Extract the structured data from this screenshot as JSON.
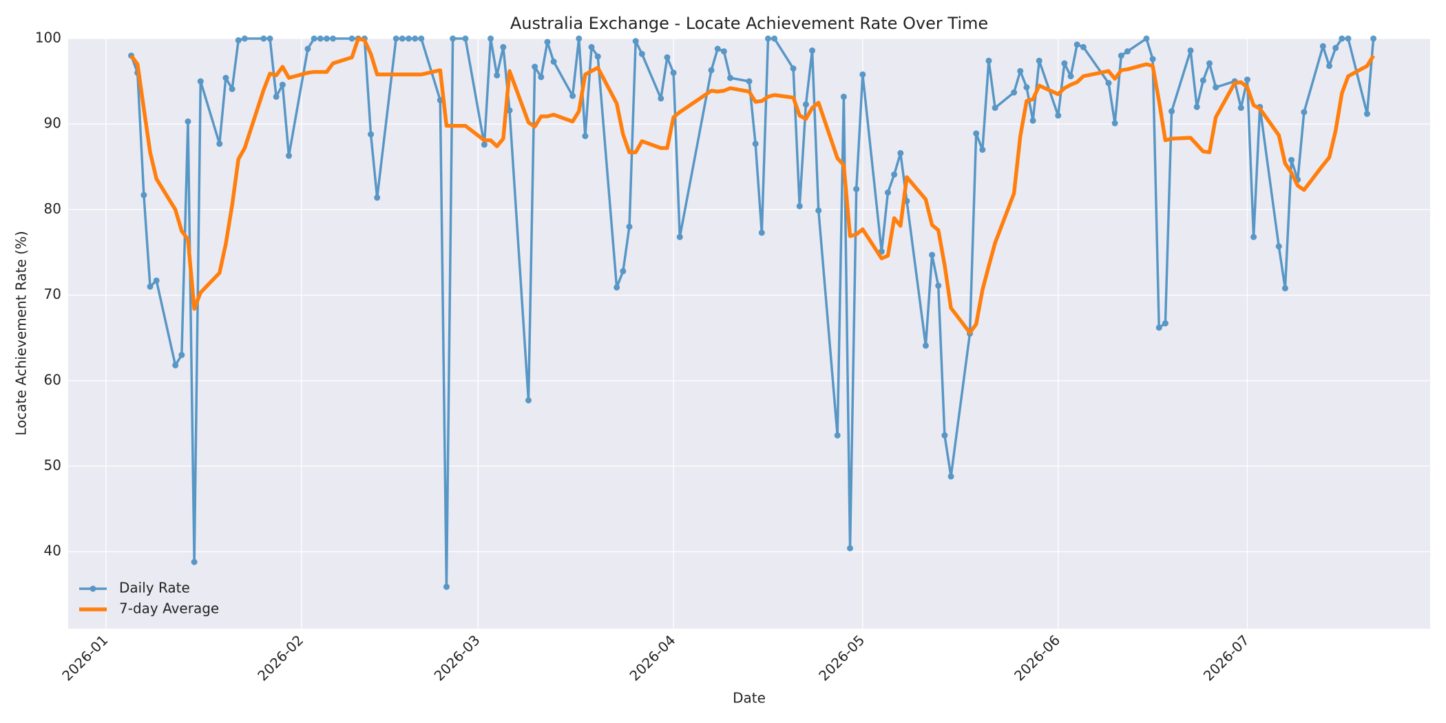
{
  "chart_data": {
    "type": "line",
    "title": "Australia Exchange - Locate Achievement Rate Over Time",
    "xlabel": "Date",
    "ylabel": "Locate Achievement Rate (%)",
    "x": [
      "2026-01-05",
      "2026-01-06",
      "2026-01-07",
      "2026-01-08",
      "2026-01-09",
      "2026-01-12",
      "2026-01-13",
      "2026-01-14",
      "2026-01-15",
      "2026-01-16",
      "2026-01-19",
      "2026-01-20",
      "2026-01-21",
      "2026-01-22",
      "2026-01-23",
      "2026-01-26",
      "2026-01-27",
      "2026-01-28",
      "2026-01-29",
      "2026-01-30",
      "2026-02-02",
      "2026-02-03",
      "2026-02-04",
      "2026-02-05",
      "2026-02-06",
      "2026-02-09",
      "2026-02-10",
      "2026-02-11",
      "2026-02-12",
      "2026-02-13",
      "2026-02-16",
      "2026-02-17",
      "2026-02-18",
      "2026-02-19",
      "2026-02-20",
      "2026-02-23",
      "2026-02-24",
      "2026-02-25",
      "2026-02-27",
      "2026-03-02",
      "2026-03-03",
      "2026-03-04",
      "2026-03-05",
      "2026-03-06",
      "2026-03-09",
      "2026-03-10",
      "2026-03-11",
      "2026-03-12",
      "2026-03-13",
      "2026-03-16",
      "2026-03-17",
      "2026-03-18",
      "2026-03-19",
      "2026-03-20",
      "2026-03-23",
      "2026-03-24",
      "2026-03-25",
      "2026-03-26",
      "2026-03-27",
      "2026-03-30",
      "2026-03-31",
      "2026-04-01",
      "2026-04-02",
      "2026-04-07",
      "2026-04-08",
      "2026-04-09",
      "2026-04-10",
      "2026-04-13",
      "2026-04-14",
      "2026-04-15",
      "2026-04-16",
      "2026-04-17",
      "2026-04-20",
      "2026-04-21",
      "2026-04-22",
      "2026-04-23",
      "2026-04-24",
      "2026-04-27",
      "2026-04-28",
      "2026-04-29",
      "2026-04-30",
      "2026-05-01",
      "2026-05-04",
      "2026-05-05",
      "2026-05-06",
      "2026-05-07",
      "2026-05-08",
      "2026-05-11",
      "2026-05-12",
      "2026-05-13",
      "2026-05-14",
      "2026-05-15",
      "2026-05-18",
      "2026-05-19",
      "2026-05-20",
      "2026-05-21",
      "2026-05-22",
      "2026-05-25",
      "2026-05-26",
      "2026-05-27",
      "2026-05-28",
      "2026-05-29",
      "2026-06-01",
      "2026-06-02",
      "2026-06-03",
      "2026-06-04",
      "2026-06-05",
      "2026-06-09",
      "2026-06-10",
      "2026-06-11",
      "2026-06-12",
      "2026-06-15",
      "2026-06-16",
      "2026-06-17",
      "2026-06-18",
      "2026-06-19",
      "2026-06-22",
      "2026-06-23",
      "2026-06-24",
      "2026-06-25",
      "2026-06-26",
      "2026-06-29",
      "2026-06-30",
      "2026-07-01",
      "2026-07-02",
      "2026-07-03",
      "2026-07-06",
      "2026-07-07",
      "2026-07-08",
      "2026-07-09",
      "2026-07-10",
      "2026-07-13",
      "2026-07-14",
      "2026-07-15",
      "2026-07-16",
      "2026-07-17",
      "2026-07-20",
      "2026-07-21"
    ],
    "series": [
      {
        "name": "Daily Rate",
        "color": "#1f77b4",
        "marker": true,
        "values": [
          98,
          96,
          81.7,
          71,
          71.7,
          61.8,
          63,
          90.3,
          38.8,
          95,
          87.7,
          95.4,
          94.1,
          99.8,
          100,
          100,
          100,
          93.2,
          94.6,
          86.3,
          98.8,
          100,
          100,
          100,
          100,
          100,
          100,
          100,
          88.8,
          81.4,
          100,
          100,
          100,
          100,
          100,
          92.8,
          35.9,
          100,
          100,
          87.6,
          100,
          95.7,
          99,
          91.6,
          57.7,
          96.7,
          95.5,
          99.6,
          97.3,
          93.3,
          100,
          88.6,
          99,
          97.9,
          70.9,
          72.8,
          78,
          99.7,
          98.2,
          93,
          97.8,
          96,
          76.8,
          96.3,
          98.8,
          98.5,
          95.4,
          95,
          87.7,
          77.3,
          100,
          100,
          96.5,
          80.4,
          92.3,
          98.6,
          79.9,
          53.6,
          93.2,
          40.4,
          82.4,
          95.8,
          75.1,
          82,
          84.1,
          86.6,
          81,
          64.1,
          74.7,
          71.1,
          53.6,
          48.8,
          65.5,
          88.9,
          87,
          97.4,
          91.9,
          93.7,
          96.2,
          94.3,
          90.4,
          97.4,
          91,
          97.1,
          95.6,
          99.3,
          99,
          94.8,
          90.1,
          98,
          98.5,
          100,
          97.6,
          66.2,
          66.7,
          91.5,
          98.6,
          92,
          95.1,
          97.1,
          94.3,
          95,
          91.9,
          95.2,
          76.8,
          92,
          75.7,
          70.8,
          85.8,
          83.5,
          91.4,
          99.1,
          96.8,
          98.9,
          100,
          100,
          91.2,
          100
        ]
      },
      {
        "name": "7-day Average",
        "color": "#ff7f0e",
        "marker": false,
        "values": [
          98,
          97,
          91.8,
          86.7,
          83.6,
          80,
          77.5,
          76.5,
          68.4,
          70.3,
          72.6,
          76,
          80.5,
          85.9,
          87.2,
          94,
          95.9,
          95.7,
          96.7,
          95.4,
          96,
          96.1,
          96.1,
          96.1,
          97.1,
          97.8,
          100,
          99.8,
          98.2,
          95.8,
          95.8,
          95.8,
          95.8,
          95.8,
          95.8,
          96.3,
          89.8,
          89.8,
          89.8,
          88.1,
          88.1,
          87.4,
          88.3,
          96.2,
          90.2,
          89.7,
          90.9,
          90.9,
          91.1,
          90.3,
          91.5,
          95.8,
          96.2,
          96.6,
          92.4,
          88.8,
          86.7,
          86.7,
          88,
          87.2,
          87.2,
          90.8,
          91.4,
          93.9,
          93.8,
          93.9,
          94.2,
          93.8,
          92.6,
          92.7,
          93.2,
          93.4,
          93.1,
          91,
          90.6,
          91.9,
          92.5,
          86,
          85.2,
          76.9,
          77.1,
          77.7,
          74.3,
          74.6,
          79,
          78.1,
          83.8,
          81.2,
          78.2,
          77.6,
          73.5,
          68.5,
          65.6,
          66.6,
          70.6,
          73.4,
          76.1,
          81.9,
          88.6,
          92.7,
          92.9,
          94.5,
          93.5,
          94.2,
          94.6,
          94.9,
          95.6,
          96.2,
          95.3,
          96.3,
          96.4,
          97,
          96.8,
          92.7,
          88.1,
          88.3,
          88.4,
          87.6,
          86.8,
          86.7,
          90.8,
          94.8,
          94.9,
          94.3,
          92.2,
          91.8,
          88.7,
          85.4,
          84.3,
          82.8,
          82.3,
          85.2,
          86.1,
          89.2,
          93.6,
          95.6,
          96.8,
          98
        ]
      }
    ],
    "xlim": [
      "2025-12-26",
      "2026-07-30"
    ],
    "xticks": [
      "2026-01",
      "2026-02",
      "2026-03",
      "2026-04",
      "2026-05",
      "2026-06",
      "2026-07"
    ],
    "ylim": [
      31,
      100
    ],
    "yticks": [
      40,
      50,
      60,
      70,
      80,
      90,
      100
    ],
    "grid": true,
    "legend": "lower left"
  }
}
